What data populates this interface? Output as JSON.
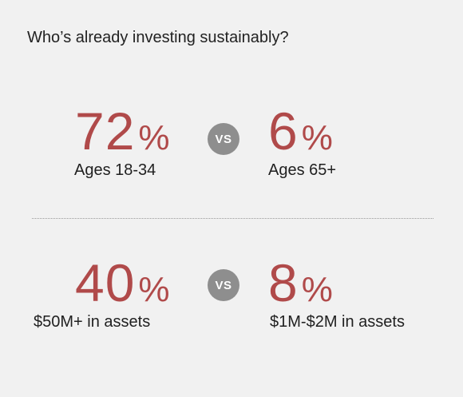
{
  "title": "Who’s already investing sustainably?",
  "accent_color": "#b04a4a",
  "vs_badge_color": "#8e8e8e",
  "comparisons": [
    {
      "left": {
        "value": "72",
        "unit": "%",
        "label": "Ages 18-34"
      },
      "vs_label": "VS",
      "right": {
        "value": "6",
        "unit": "%",
        "label": "Ages 65+"
      }
    },
    {
      "left": {
        "value": "40",
        "unit": "%",
        "label": "$50M+ in assets"
      },
      "vs_label": "VS",
      "right": {
        "value": "8",
        "unit": "%",
        "label": "$1M-$2M in assets"
      }
    }
  ]
}
